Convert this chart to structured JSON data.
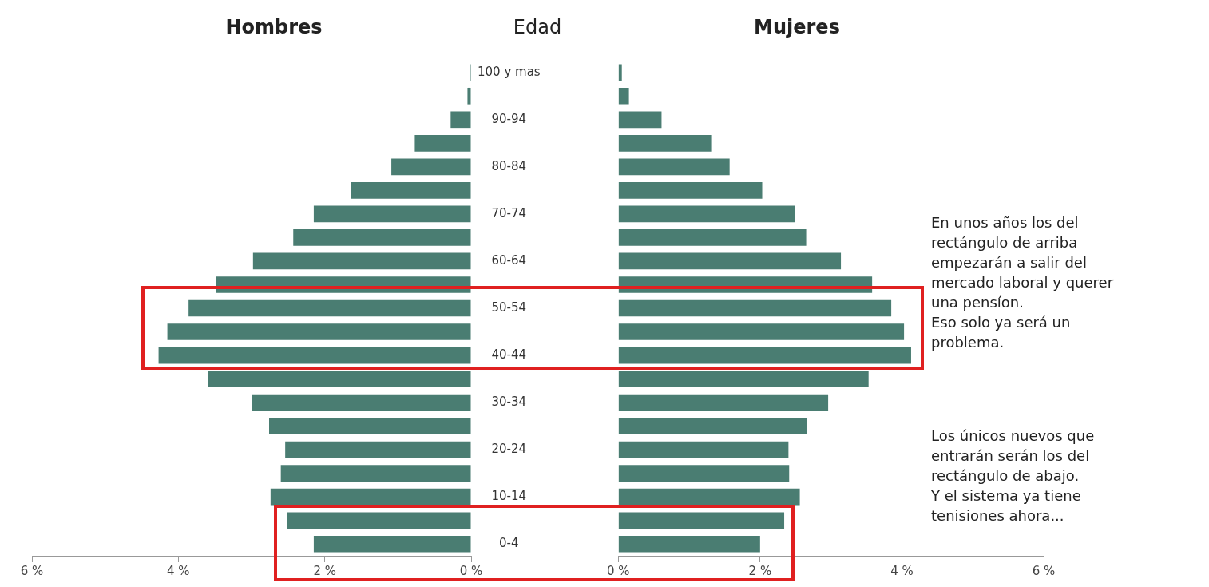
{
  "chart_data": [
    {
      "type": "bar",
      "orientation": "horizontal",
      "title": "Hombres",
      "ylabel": "Edad",
      "categories": [
        "100 y mas",
        null,
        "90-94",
        null,
        "80-84",
        null,
        "70-74",
        null,
        "60-64",
        null,
        "50-54",
        null,
        "40-44",
        null,
        "30-34",
        null,
        "20-24",
        null,
        "10-14",
        null,
        "0-4"
      ],
      "series": [
        {
          "color": "#4a7d72",
          "values": [
            0.02,
            0.05,
            0.28,
            0.77,
            1.09,
            1.64,
            2.15,
            2.43,
            2.98,
            3.49,
            3.86,
            4.15,
            4.27,
            3.59,
            3.0,
            2.76,
            2.54,
            2.6,
            2.74,
            2.52,
            2.15
          ]
        }
      ],
      "xlim": [
        6,
        0
      ],
      "xticks": [
        {
          "value": 6,
          "label": "6 %"
        },
        {
          "value": 4,
          "label": "4 %"
        },
        {
          "value": 2,
          "label": "2 %"
        },
        {
          "value": 0,
          "label": "0 %"
        }
      ]
    },
    {
      "type": "bar",
      "orientation": "horizontal",
      "title": "Mujeres",
      "tick_labels": "x",
      "categories": [
        null,
        null,
        null,
        null,
        null,
        null,
        null,
        null,
        null,
        null,
        null,
        null,
        null,
        null,
        null,
        null,
        null,
        null,
        null,
        null,
        null
      ],
      "series": [
        {
          "color": "#4a7d72",
          "values": [
            0.05,
            0.15,
            0.61,
            1.31,
            1.57,
            2.03,
            2.49,
            2.65,
            3.14,
            3.58,
            3.85,
            4.03,
            4.13,
            3.53,
            2.96,
            2.66,
            2.4,
            2.41,
            2.56,
            2.34,
            2.0
          ]
        }
      ],
      "xlim": [
        0,
        6
      ],
      "xticks": [
        {
          "value": 0,
          "label": "0 %"
        },
        {
          "value": 2,
          "label": "2 %"
        },
        {
          "value": 4,
          "label": "4 %"
        },
        {
          "value": 6,
          "label": "6 %"
        }
      ],
      "annotations": [
        "En unos años los del\nrectángulo de arriba\nempezarán a salir del\nmercado laboral y querer\nuna pensíon.\nEso solo ya será un\nproblema.",
        "Los únicos nuevos que\nentrarán serán los del\nrectángulo de abajo.\nY el sistema ya tiene\ntenisiones ahora..."
      ]
    }
  ]
}
